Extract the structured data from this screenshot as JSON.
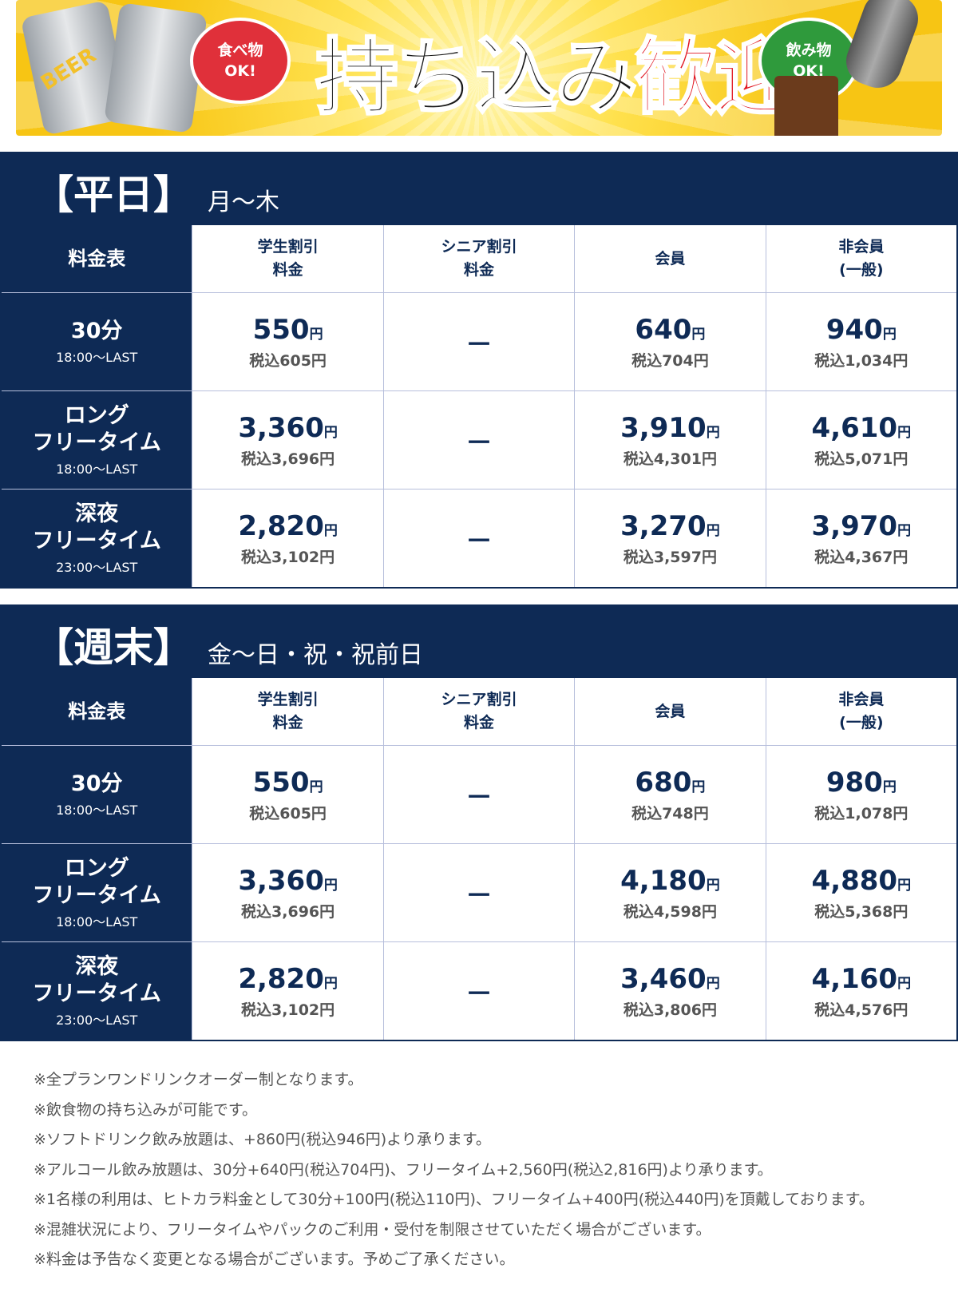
{
  "banner": {
    "can_label": "BEER",
    "badge_left": [
      "食べ物",
      "OK!"
    ],
    "title_main": "持ち込み",
    "title_accent": "歓迎!",
    "badge_right": [
      "飲み物",
      "OK!"
    ]
  },
  "sections": [
    {
      "title": "【平日】",
      "days": "月～木",
      "table": {
        "header": [
          [
            "料金表"
          ],
          [
            "学生割引",
            "料金"
          ],
          [
            "シニア割引",
            "料金"
          ],
          [
            "会員"
          ],
          [
            "非会員",
            "(一般)"
          ]
        ],
        "rows": [
          {
            "label": [
              "30分"
            ],
            "time": "18:00～LAST",
            "cells": [
              {
                "price": "550",
                "unit": "円",
                "tax": "税込605円"
              },
              "－",
              {
                "price": "640",
                "unit": "円",
                "tax": "税込704円"
              },
              {
                "price": "940",
                "unit": "円",
                "tax": "税込1,034円"
              }
            ]
          },
          {
            "label": [
              "ロング",
              "フリータイム"
            ],
            "time": "18:00～LAST",
            "cells": [
              {
                "price": "3,360",
                "unit": "円",
                "tax": "税込3,696円"
              },
              "－",
              {
                "price": "3,910",
                "unit": "円",
                "tax": "税込4,301円"
              },
              {
                "price": "4,610",
                "unit": "円",
                "tax": "税込5,071円"
              }
            ]
          },
          {
            "label": [
              "深夜",
              "フリータイム"
            ],
            "time": "23:00～LAST",
            "cells": [
              {
                "price": "2,820",
                "unit": "円",
                "tax": "税込3,102円"
              },
              "－",
              {
                "price": "3,270",
                "unit": "円",
                "tax": "税込3,597円"
              },
              {
                "price": "3,970",
                "unit": "円",
                "tax": "税込4,367円"
              }
            ]
          }
        ]
      }
    },
    {
      "title": "【週末】",
      "days": "金～日・祝・祝前日",
      "table": {
        "header": [
          [
            "料金表"
          ],
          [
            "学生割引",
            "料金"
          ],
          [
            "シニア割引",
            "料金"
          ],
          [
            "会員"
          ],
          [
            "非会員",
            "(一般)"
          ]
        ],
        "rows": [
          {
            "label": [
              "30分"
            ],
            "time": "18:00～LAST",
            "cells": [
              {
                "price": "550",
                "unit": "円",
                "tax": "税込605円"
              },
              "－",
              {
                "price": "680",
                "unit": "円",
                "tax": "税込748円"
              },
              {
                "price": "980",
                "unit": "円",
                "tax": "税込1,078円"
              }
            ]
          },
          {
            "label": [
              "ロング",
              "フリータイム"
            ],
            "time": "18:00～LAST",
            "cells": [
              {
                "price": "3,360",
                "unit": "円",
                "tax": "税込3,696円"
              },
              "－",
              {
                "price": "4,180",
                "unit": "円",
                "tax": "税込4,598円"
              },
              {
                "price": "4,880",
                "unit": "円",
                "tax": "税込5,368円"
              }
            ]
          },
          {
            "label": [
              "深夜",
              "フリータイム"
            ],
            "time": "23:00～LAST",
            "cells": [
              {
                "price": "2,820",
                "unit": "円",
                "tax": "税込3,102円"
              },
              "－",
              {
                "price": "3,460",
                "unit": "円",
                "tax": "税込3,806円"
              },
              {
                "price": "4,160",
                "unit": "円",
                "tax": "税込4,576円"
              }
            ]
          }
        ]
      }
    }
  ],
  "notes": [
    "※全プランワンドリンクオーダー制となります。",
    "※飲食物の持ち込みが可能です。",
    "※ソフトドリンク飲み放題は、+860円(税込946円)より承ります。",
    "※アルコール飲み放題は、30分+640円(税込704円)、フリータイム+2,560円(税込2,816円)より承ります。",
    "※1名様の利用は、ヒトカラ料金として30分+100円(税込110円)、フリータイム+400円(税込440円)を頂戴しております。",
    "※混雑状況により、フリータイムやパックのご利用・受付を制限させていただく場合がございます。",
    "※料金は予告なく変更となる場合がございます。予めご了承ください。"
  ]
}
